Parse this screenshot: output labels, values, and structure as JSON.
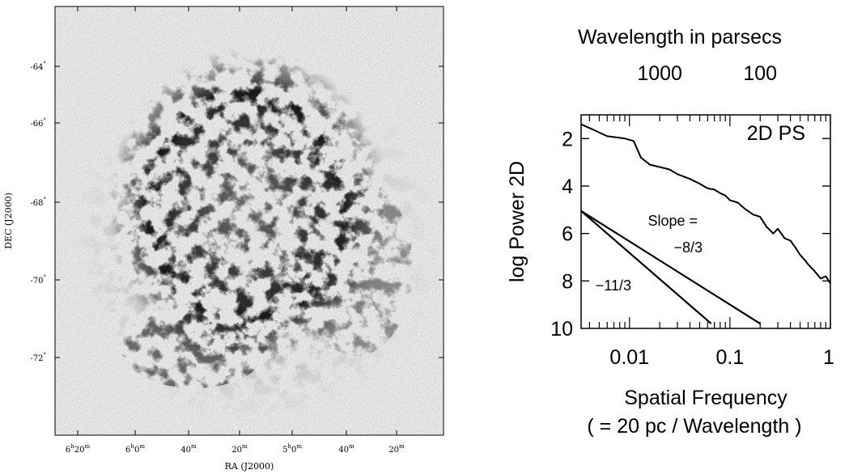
{
  "left_panel": {
    "ylabel": "DEC (J2000)",
    "xlabel": "RA (J2000)",
    "dec_ticks": [
      {
        "deg": "-64",
        "sup": "°"
      },
      {
        "deg": "-66",
        "sup": "°"
      },
      {
        "deg": "-68",
        "sup": "°"
      },
      {
        "deg": "-70",
        "sup": "°"
      },
      {
        "deg": "-72",
        "sup": "°"
      }
    ],
    "ra_ticks": [
      {
        "h": "6",
        "hs": "h",
        "m": "20",
        "ms": "m"
      },
      {
        "h": "6",
        "hs": "h",
        "m": "0",
        "ms": "m"
      },
      {
        "h": "",
        "hs": "",
        "m": "40",
        "ms": "m"
      },
      {
        "h": "",
        "hs": "",
        "m": "20",
        "ms": "m"
      },
      {
        "h": "5",
        "hs": "h",
        "m": "0",
        "ms": "m"
      },
      {
        "h": "",
        "hs": "",
        "m": "40",
        "ms": "m"
      },
      {
        "h": "",
        "hs": "",
        "m": "20",
        "ms": "m"
      }
    ]
  },
  "chart_data": {
    "type": "line",
    "title": "2D PS",
    "xlabel": "Spatial Frequency",
    "xlabel2": "( = 20 pc / Wavelength )",
    "ylabel": "log Power 2D",
    "top_axis_label": "Wavelength in parsecs",
    "top_ticks": [
      {
        "label": "1000",
        "value": 0.02
      },
      {
        "label": "100",
        "value": 0.2
      }
    ],
    "x_scale": "log",
    "xlim": [
      0.0033,
      1
    ],
    "ylim": [
      10,
      1
    ],
    "x_ticks": [
      {
        "label": "0.01",
        "value": 0.01
      },
      {
        "label": "0.1",
        "value": 0.1
      },
      {
        "label": "1",
        "value": 1
      }
    ],
    "y_ticks": [
      {
        "label": "2",
        "value": 2
      },
      {
        "label": "4",
        "value": 4
      },
      {
        "label": "6",
        "value": 6
      },
      {
        "label": "8",
        "value": 8
      },
      {
        "label": "10",
        "value": 10
      }
    ],
    "series": [
      {
        "name": "2D PS",
        "x": [
          0.0033,
          0.0045,
          0.006,
          0.0075,
          0.009,
          0.011,
          0.013,
          0.016,
          0.02,
          0.025,
          0.03,
          0.04,
          0.05,
          0.06,
          0.07,
          0.08,
          0.09,
          0.1,
          0.12,
          0.14,
          0.17,
          0.2,
          0.23,
          0.27,
          0.3,
          0.35,
          0.4,
          0.45,
          0.5,
          0.55,
          0.6,
          0.7,
          0.8,
          0.9,
          1.0
        ],
        "y": [
          1.4,
          1.65,
          1.9,
          1.95,
          2.0,
          2.1,
          2.8,
          3.1,
          3.2,
          3.3,
          3.5,
          3.7,
          3.9,
          4.1,
          4.15,
          4.3,
          4.4,
          4.6,
          4.7,
          4.95,
          5.2,
          5.3,
          5.7,
          6.0,
          5.8,
          6.2,
          6.3,
          6.6,
          6.9,
          7.1,
          7.3,
          7.6,
          7.9,
          7.8,
          8.1
        ]
      },
      {
        "name": "slope_8_3",
        "x": [
          0.0033,
          0.2
        ],
        "y": [
          5.05,
          9.8
        ]
      },
      {
        "name": "slope_11_3",
        "x": [
          0.0033,
          0.065
        ],
        "y": [
          5.05,
          9.8
        ]
      }
    ],
    "annotations": [
      "Slope =",
      "−8/3",
      "−11/3"
    ]
  }
}
